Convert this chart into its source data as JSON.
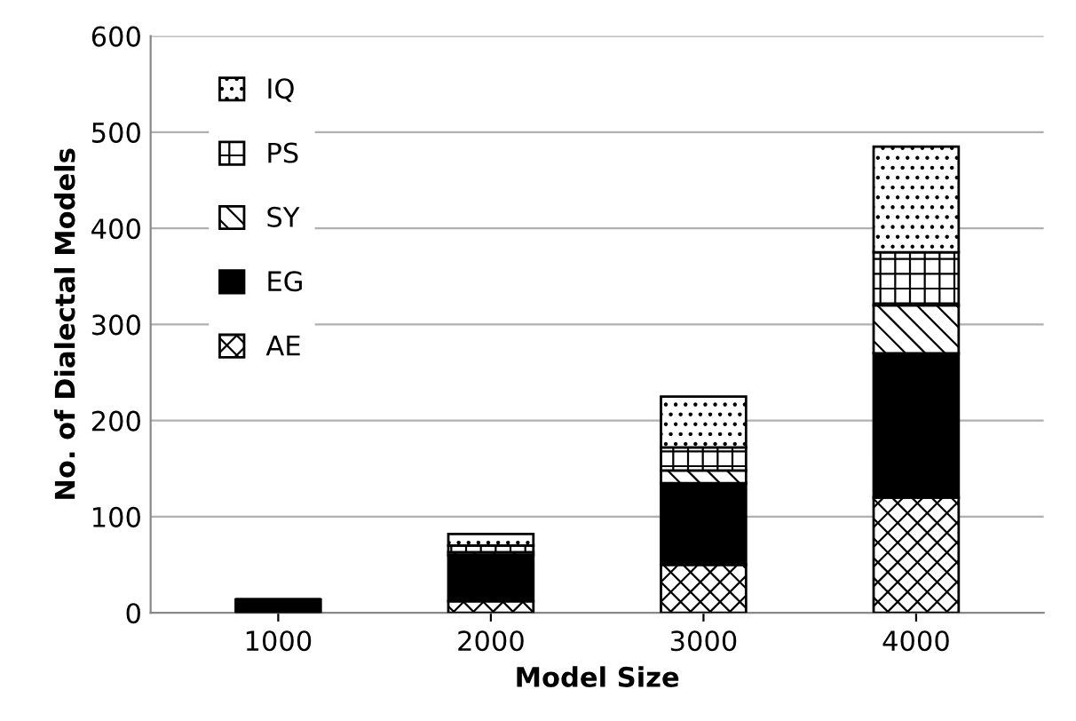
{
  "chart_data": {
    "type": "bar",
    "stacked": true,
    "xlabel": "Model Size",
    "ylabel": "No. of Dialectal Models",
    "categories": [
      "1000",
      "2000",
      "3000",
      "4000"
    ],
    "series": [
      {
        "name": "AE",
        "color": "#000000",
        "values": [
          0,
          12,
          50,
          120
        ]
      },
      {
        "name": "EG",
        "color": "#000000",
        "values": [
          14,
          48,
          85,
          150
        ]
      },
      {
        "name": "SY",
        "color": "#000000",
        "values": [
          0,
          3,
          13,
          50
        ]
      },
      {
        "name": "PS",
        "color": "#000000",
        "values": [
          0,
          7,
          24,
          55
        ]
      },
      {
        "name": "IQ",
        "color": "#000000",
        "values": [
          0,
          12,
          53,
          110
        ]
      }
    ],
    "ylim": [
      0,
      600
    ],
    "yticks": [
      0,
      100,
      200,
      300,
      400,
      500,
      600
    ],
    "grid": "y",
    "legend": "top left"
  }
}
